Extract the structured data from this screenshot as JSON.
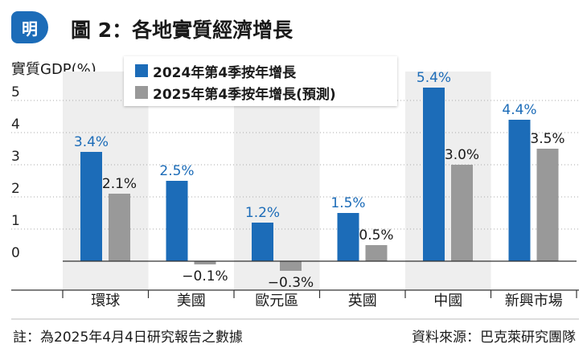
{
  "header": {
    "logo_text": "明",
    "title": "圖 2：各地實質經濟增長"
  },
  "footer": {
    "note": "註：為2025年4月4日研究報告之數據",
    "source": "資料來源：巴克萊研究團隊"
  },
  "colors": {
    "series_2024": "#1c6cb8",
    "series_2025": "#999999",
    "panel_bg": "#eeeeee",
    "logo_bg": "#1c6cb8"
  },
  "chart_data": {
    "type": "bar",
    "ylabel": "實質GDP(%)",
    "categories": [
      "環球",
      "美國",
      "歐元區",
      "英國",
      "中國",
      "新興市場"
    ],
    "ylim": [
      -0.9,
      5.9
    ],
    "yticks": [
      "0",
      "1",
      "2",
      "3",
      "4",
      "5"
    ],
    "legend_placement": "top-center",
    "series": [
      {
        "name": "2024年第4季按年增長",
        "values": [
          3.4,
          2.5,
          1.2,
          1.5,
          5.4,
          4.4
        ],
        "labels": [
          "3.4%",
          "2.5%",
          "1.2%",
          "1.5%",
          "5.4%",
          "4.4%"
        ]
      },
      {
        "name": "2025年第4季按年增長(預測)",
        "values": [
          2.1,
          -0.1,
          -0.3,
          0.5,
          3.0,
          3.5
        ],
        "labels": [
          "2.1%",
          "−0.1%",
          "−0.3%",
          "0.5%",
          "3.0%",
          "3.5%"
        ]
      }
    ]
  }
}
